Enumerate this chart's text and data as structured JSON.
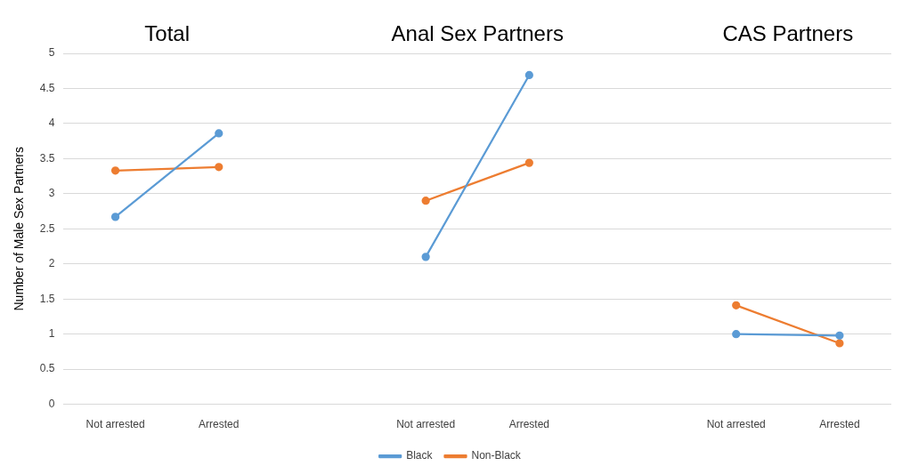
{
  "chart_data": {
    "type": "line",
    "ylabel": "Number of Male Sex Partners",
    "categories": [
      "Not arrested",
      "Arrested",
      null,
      "Not arrested",
      "Arrested",
      null,
      "Not arrested",
      "Arrested"
    ],
    "series": [
      {
        "name": "Black",
        "color": "#5b9bd5",
        "values": [
          2.67,
          3.86,
          null,
          2.1,
          4.69,
          null,
          1.0,
          0.98
        ]
      },
      {
        "name": "Non-Black",
        "color": "#ed7d31",
        "values": [
          3.33,
          3.38,
          null,
          2.9,
          3.44,
          null,
          1.41,
          0.87
        ]
      }
    ],
    "ylim": [
      0,
      5
    ],
    "yticks": [
      0,
      0.5,
      1,
      1.5,
      2,
      2.5,
      3,
      3.5,
      4,
      4.5,
      5
    ],
    "grid": "y",
    "legend": "bottom",
    "marker": "circle",
    "annotations": [
      "Total",
      "Anal Sex Partners",
      "CAS Partners"
    ]
  }
}
